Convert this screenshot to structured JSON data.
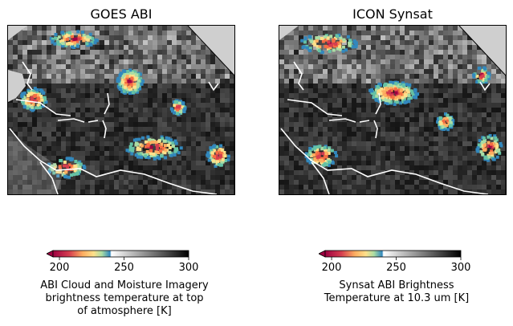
{
  "panels": [
    {
      "title": "GOES ABI",
      "colorbar": {
        "label_lines": [
          "ABI Cloud and Moisture Imagery",
          "brightness temperature at top",
          "of atmosphere [K]"
        ],
        "range": [
          195,
          300
        ],
        "ticks": [
          "200",
          "250",
          "300"
        ],
        "tick_values": [
          200,
          250,
          300
        ],
        "extend": "min"
      }
    },
    {
      "title": "ICON Synsat",
      "colorbar": {
        "label_lines": [
          "Synsat ABI Brightness",
          "Temperature at 10.3 um [K]"
        ],
        "range": [
          195,
          300
        ],
        "ticks": [
          "200",
          "250",
          "300"
        ],
        "tick_values": [
          200,
          250,
          300
        ],
        "extend": "min"
      }
    }
  ],
  "colors": {
    "land_mask": "#cfcfcf",
    "coast": "#ffffff",
    "cold_top": "#9e0142",
    "mid": "#fdae61",
    "warm_gray": "#000000"
  },
  "chart_data": [
    {
      "type": "heatmap",
      "title": "GOES ABI",
      "colorbar_label": "ABI Cloud and Moisture Imagery brightness temperature at top of atmosphere [K]",
      "color_range": [
        195,
        300
      ],
      "colorbar_ticks": [
        200,
        250,
        300
      ]
    },
    {
      "type": "heatmap",
      "title": "ICON Synsat",
      "colorbar_label": "Synsat ABI Brightness Temperature at 10.3 um [K]",
      "color_range": [
        195,
        300
      ],
      "colorbar_ticks": [
        200,
        250,
        300
      ]
    }
  ]
}
